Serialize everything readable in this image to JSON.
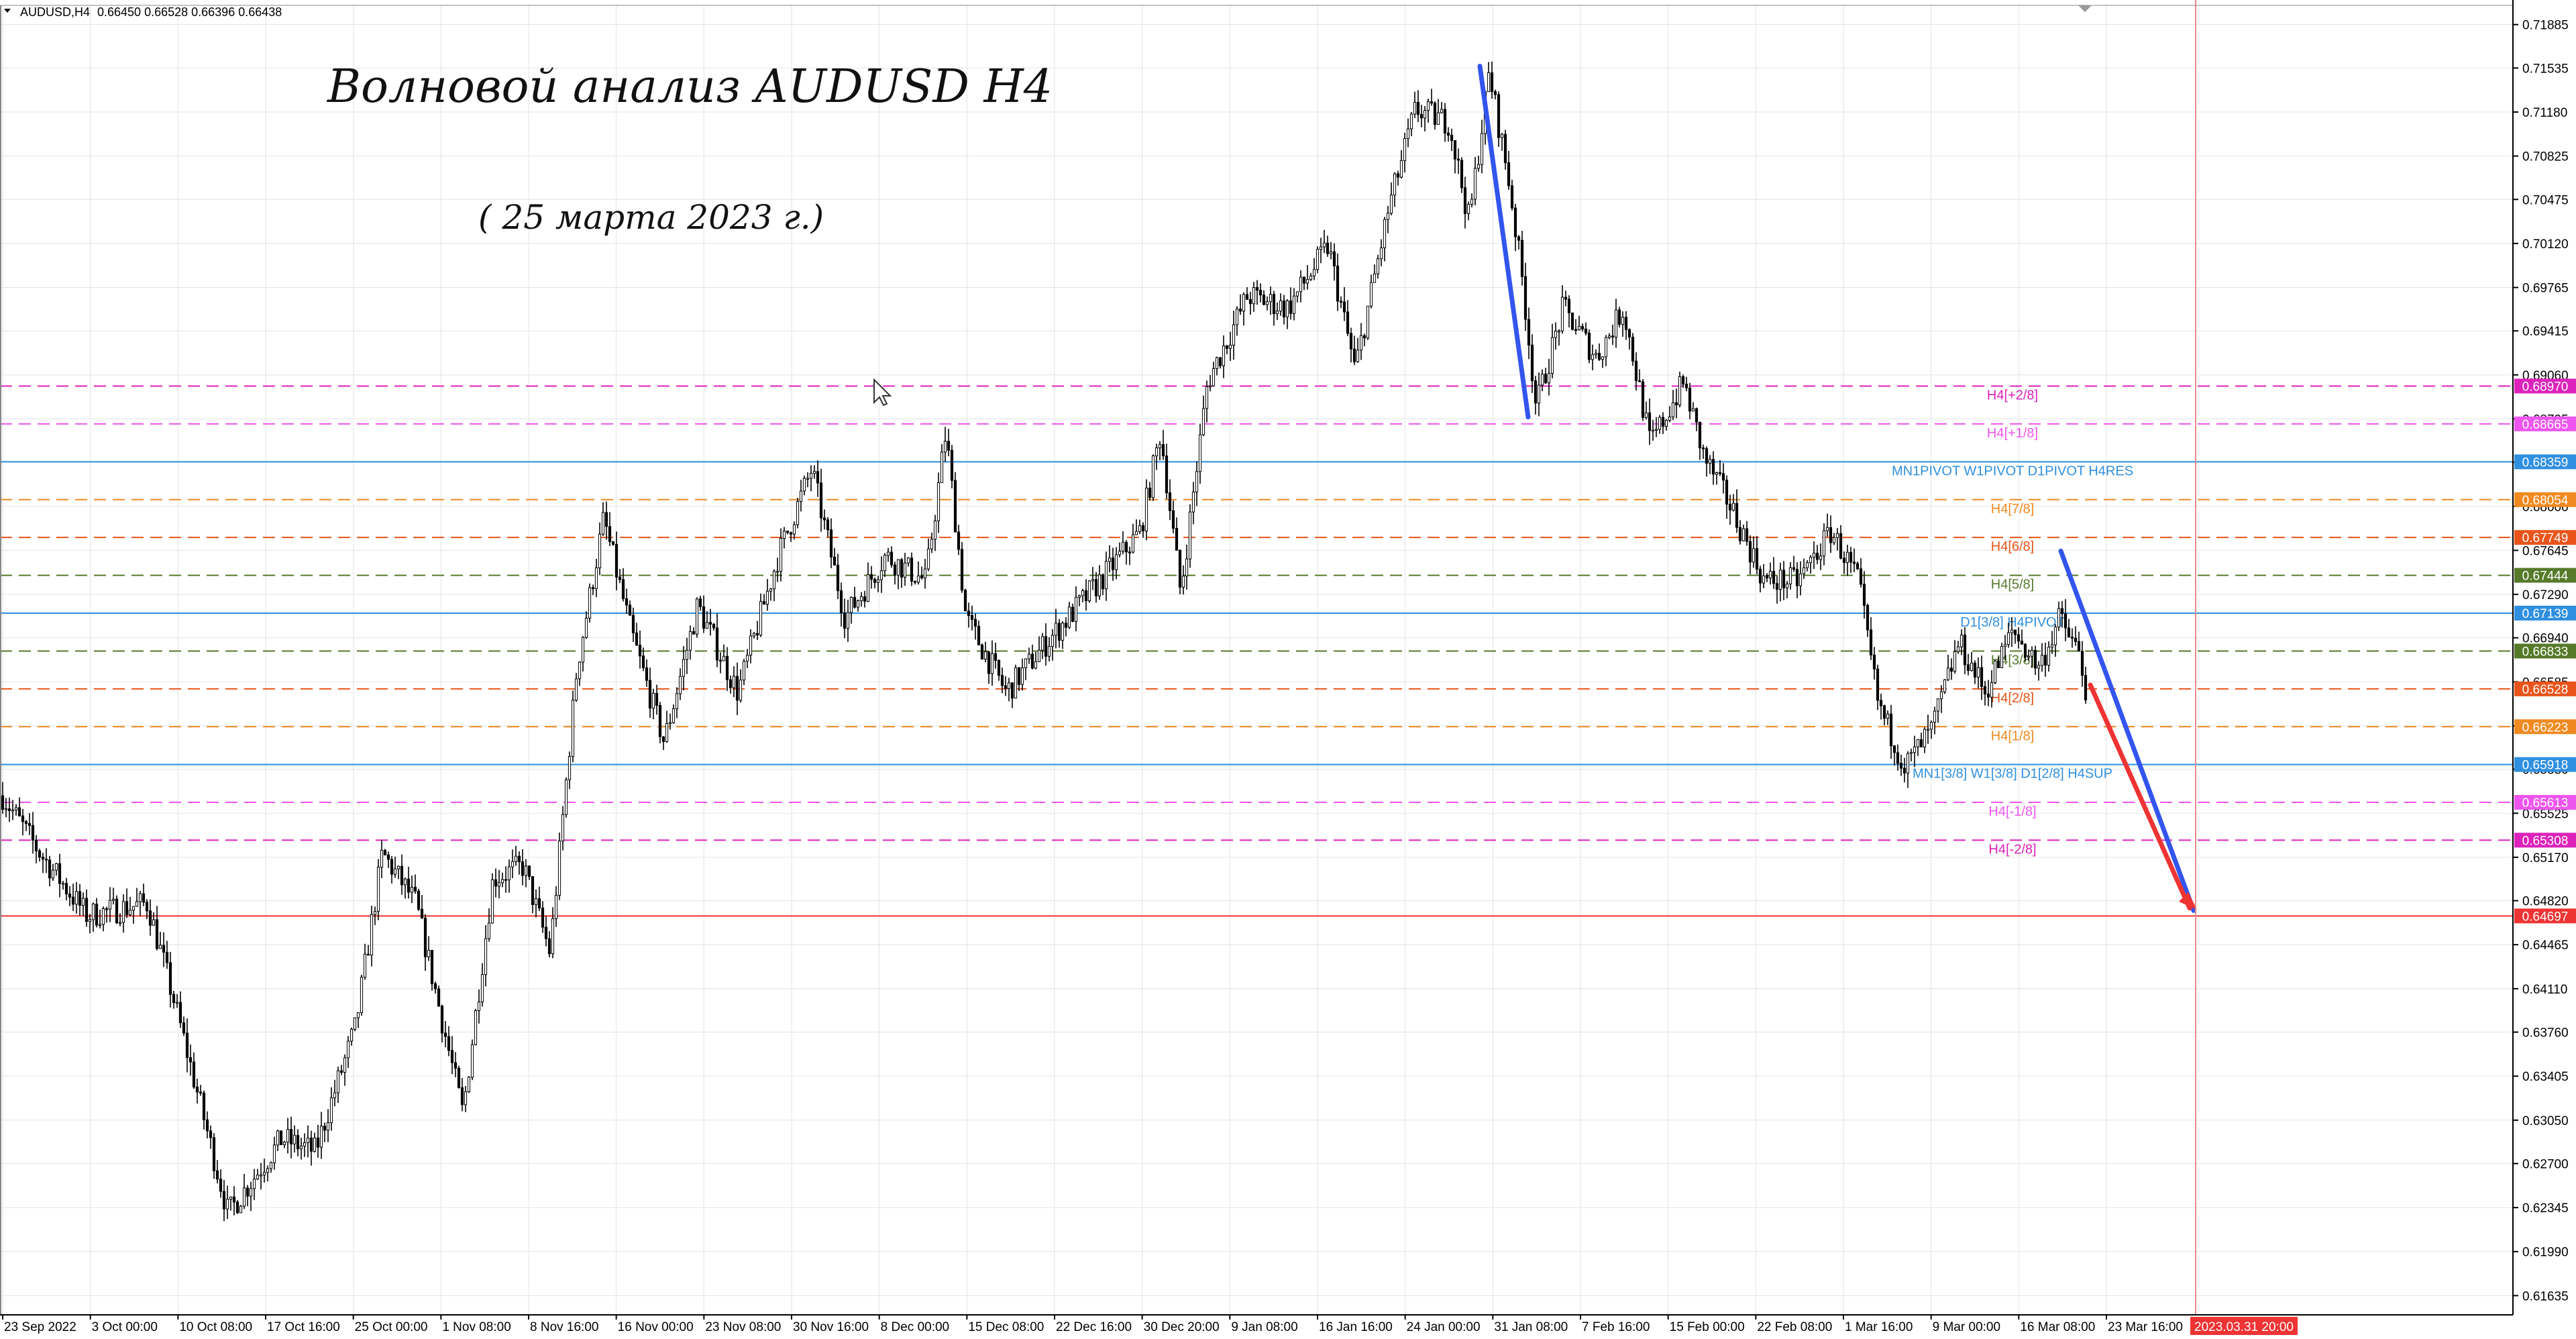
{
  "header": {
    "symbol": "AUDUSD,H4",
    "ohlc": "0.66450 0.66528 0.66396 0.66438"
  },
  "annotations": {
    "title": "Волновой анализ AUDUSD H4",
    "date": "( 25 марта 2023 г.)"
  },
  "colors": {
    "background": "#ffffff",
    "grid": "#e3e3e3",
    "candle": "#000000",
    "blue_trend": "#3355ee",
    "red_trend": "#ee3333",
    "cursor_line": "#e58a8a"
  },
  "chart_data": {
    "type": "candlestick",
    "symbol": "AUDUSD",
    "timeframe": "H4",
    "x_tick_labels": [
      "23 Sep 2022",
      "3 Oct 00:00",
      "10 Oct 08:00",
      "17 Oct 16:00",
      "25 Oct 00:00",
      "1 Nov 08:00",
      "8 Nov 16:00",
      "16 Nov 00:00",
      "23 Nov 08:00",
      "30 Nov 16:00",
      "8 Dec 00:00",
      "15 Dec 08:00",
      "22 Dec 16:00",
      "30 Dec 20:00",
      "9 Jan 08:00",
      "16 Jan 16:00",
      "24 Jan 00:00",
      "31 Jan 08:00",
      "7 Feb 16:00",
      "15 Feb 00:00",
      "22 Feb 08:00",
      "1 Mar 16:00",
      "9 Mar 00:00",
      "16 Mar 08:00",
      "23 Mar 16:00"
    ],
    "y_tick_labels": [
      "0.71885",
      "0.71535",
      "0.71180",
      "0.70825",
      "0.70475",
      "0.70120",
      "0.69765",
      "0.69415",
      "0.69060",
      "0.68705",
      "0.68355",
      "0.68000",
      "0.67645",
      "0.67290",
      "0.66940",
      "0.66585",
      "0.66230",
      "0.65880",
      "0.65525",
      "0.65170",
      "0.64820",
      "0.64465",
      "0.64110",
      "0.63760",
      "0.63405",
      "0.63050",
      "0.62700",
      "0.62345",
      "0.61990",
      "0.61635"
    ],
    "ylim": [
      0.6148,
      0.7204
    ],
    "cursor_date_label": "2023.03.31 20:00",
    "levels": [
      {
        "price": 0.6897,
        "price_label": "0.68970",
        "text": "H4[+2/8]",
        "color": "#dd22bb",
        "style": "dash"
      },
      {
        "price": 0.68665,
        "price_label": "0.68665",
        "text": "H4[+1/8]",
        "color": "#ee55ee",
        "style": "dash"
      },
      {
        "price": 0.68359,
        "price_label": "0.68359",
        "text": "MN1PIVOT W1PIVOT D1PIVOT H4RES",
        "color": "#2f8fe0",
        "style": "solid"
      },
      {
        "price": 0.68054,
        "price_label": "0.68054",
        "text": "H4[7/8]",
        "color": "#f08a20",
        "style": "dash"
      },
      {
        "price": 0.67749,
        "price_label": "0.67749",
        "text": "H4[6/8]",
        "color": "#e8541a",
        "style": "dash"
      },
      {
        "price": 0.67444,
        "price_label": "0.67444",
        "text": "H4[5/8]",
        "color": "#557a2a",
        "style": "dash"
      },
      {
        "price": 0.67139,
        "price_label": "0.67139",
        "text": "D1[3/8] H4PIVOT",
        "color": "#2f8fe0",
        "style": "solid"
      },
      {
        "price": 0.66833,
        "price_label": "0.66833",
        "text": "H4[3/8]",
        "color": "#557a2a",
        "style": "dash"
      },
      {
        "price": 0.66528,
        "price_label": "0.66528",
        "text": "H4[2/8]",
        "color": "#e8541a",
        "style": "dash"
      },
      {
        "price": 0.66223,
        "price_label": "0.66223",
        "text": "H4[1/8]",
        "color": "#f08a20",
        "style": "dash"
      },
      {
        "price": 0.65918,
        "price_label": "0.65918",
        "text": "MN1[3/8] W1[3/8] D1[2/8] H4SUP",
        "color": "#2f8fe0",
        "style": "solid"
      },
      {
        "price": 0.65613,
        "price_label": "0.65613",
        "text": "H4[-1/8]",
        "color": "#ee55ee",
        "style": "dash"
      },
      {
        "price": 0.65308,
        "price_label": "0.65308",
        "text": "H4[-2/8]",
        "color": "#dd22bb",
        "style": "dash"
      },
      {
        "price": 0.64697,
        "price_label": "0.64697",
        "text": "",
        "color": "#ee3333",
        "style": "solid"
      }
    ],
    "series": []
  }
}
